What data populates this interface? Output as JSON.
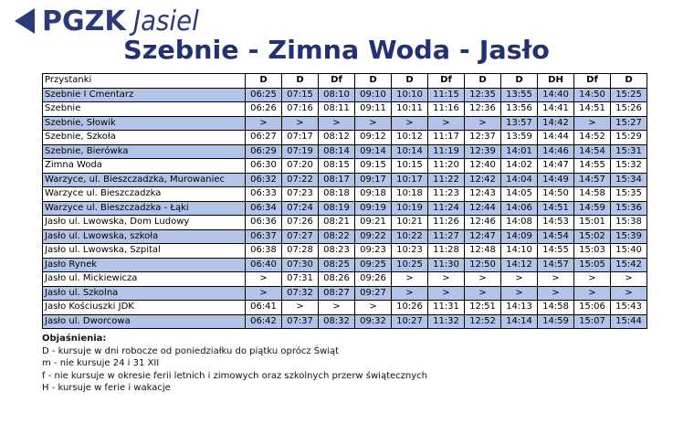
{
  "header": {
    "brand": "PGZK",
    "brand_sub": "Jasiel",
    "title": "Szebnie - Zimna Woda - Jasło"
  },
  "table": {
    "stop_header": "Przystanki",
    "columns": [
      "D",
      "D",
      "Df",
      "D",
      "D",
      "Df",
      "D",
      "D",
      "DH",
      "Df",
      "D"
    ],
    "rows": [
      {
        "stop": "Szebnie I Cmentarz",
        "times": [
          "06:25",
          "07:15",
          "08:10",
          "09:10",
          "10:10",
          "11:15",
          "12:35",
          "13:55",
          "14:40",
          "14:50",
          "15:25"
        ]
      },
      {
        "stop": "Szebnie",
        "times": [
          "06:26",
          "07:16",
          "08:11",
          "09:11",
          "10:11",
          "11:16",
          "12:36",
          "13:56",
          "14:41",
          "14:51",
          "15:26"
        ]
      },
      {
        "stop": "Szebnie, Słowik",
        "times": [
          ">",
          ">",
          ">",
          ">",
          ">",
          ">",
          ">",
          "13:57",
          "14:42",
          ">",
          "15:27"
        ]
      },
      {
        "stop": "Szebnie, Szkoła",
        "times": [
          "06:27",
          "07:17",
          "08:12",
          "09:12",
          "10:12",
          "11:17",
          "12:37",
          "13:59",
          "14:44",
          "14:52",
          "15:29"
        ]
      },
      {
        "stop": "Szebnie, Bierówka",
        "times": [
          "06:29",
          "07:19",
          "08:14",
          "09:14",
          "10:14",
          "11:19",
          "12:39",
          "14:01",
          "14:46",
          "14:54",
          "15:31"
        ]
      },
      {
        "stop": "Zimna Woda",
        "times": [
          "06:30",
          "07:20",
          "08:15",
          "09:15",
          "10:15",
          "11:20",
          "12:40",
          "14:02",
          "14:47",
          "14:55",
          "15:32"
        ]
      },
      {
        "stop": "Warzyce, ul. Bieszczadzka, Murowaniec",
        "times": [
          "06:32",
          "07:22",
          "08:17",
          "09:17",
          "10:17",
          "11:22",
          "12:42",
          "14:04",
          "14:49",
          "14:57",
          "15:34"
        ]
      },
      {
        "stop": "Warzyce ul. Bieszczadzka",
        "times": [
          "06:33",
          "07:23",
          "08:18",
          "09:18",
          "10:18",
          "11:23",
          "12:43",
          "14:05",
          "14:50",
          "14:58",
          "15:35"
        ]
      },
      {
        "stop": "Warzyce ul. Bieszczadzka - Łąki",
        "times": [
          "06:34",
          "07:24",
          "08:19",
          "09:19",
          "10:19",
          "11:24",
          "12:44",
          "14:06",
          "14:51",
          "14:59",
          "15:36"
        ]
      },
      {
        "stop": "Jasło ul. Lwowska, Dom Ludowy",
        "times": [
          "06:36",
          "07:26",
          "08:21",
          "09:21",
          "10:21",
          "11:26",
          "12:46",
          "14:08",
          "14:53",
          "15:01",
          "15:38"
        ]
      },
      {
        "stop": "Jasło ul. Lwowska, szkoła",
        "times": [
          "06:37",
          "07:27",
          "08:22",
          "09:22",
          "10:22",
          "11:27",
          "12:47",
          "14:09",
          "14:54",
          "15:02",
          "15:39"
        ]
      },
      {
        "stop": "Jasło ul. Lwowska, Szpital",
        "times": [
          "06:38",
          "07:28",
          "08:23",
          "09:23",
          "10:23",
          "11:28",
          "12:48",
          "14:10",
          "14:55",
          "15:03",
          "15:40"
        ]
      },
      {
        "stop": "Jasło Rynek",
        "times": [
          "06:40",
          "07:30",
          "08:25",
          "09:25",
          "10:25",
          "11:30",
          "12:50",
          "14:12",
          "14:57",
          "15:05",
          "15:42"
        ]
      },
      {
        "stop": "Jasło ul. Mickiewicza",
        "times": [
          ">",
          "07:31",
          "08:26",
          "09:26",
          ">",
          ">",
          ">",
          ">",
          ">",
          ">",
          ">"
        ]
      },
      {
        "stop": "Jasło ul. Szkolna",
        "times": [
          ">",
          "07:32",
          "08:27",
          "09:27",
          ">",
          ">",
          ">",
          ">",
          ">",
          ">",
          ">"
        ]
      },
      {
        "stop": "Jasło Kościuszki JDK",
        "times": [
          "06:41",
          ">",
          ">",
          ">",
          "10:26",
          "11:31",
          "12:51",
          "14:13",
          "14:58",
          "15:06",
          "15:43"
        ]
      },
      {
        "stop": "Jasło ul. Dworcowa",
        "times": [
          "06:42",
          "07:37",
          "08:32",
          "09:32",
          "10:27",
          "11:32",
          "12:52",
          "14:14",
          "14:59",
          "15:07",
          "15:44"
        ]
      }
    ]
  },
  "notes": {
    "title": "Objaśnienia:",
    "items": [
      "D - kursuje w dni robocze od poniedziałku do piątku oprócz Świąt",
      "m - nie kursuje 24 i 31 XII",
      "f - nie kursuje w okresie ferii letnich i zimowych oraz szkolnych przerw świątecznych",
      "H - kursuje w ferie i wakacje"
    ]
  }
}
